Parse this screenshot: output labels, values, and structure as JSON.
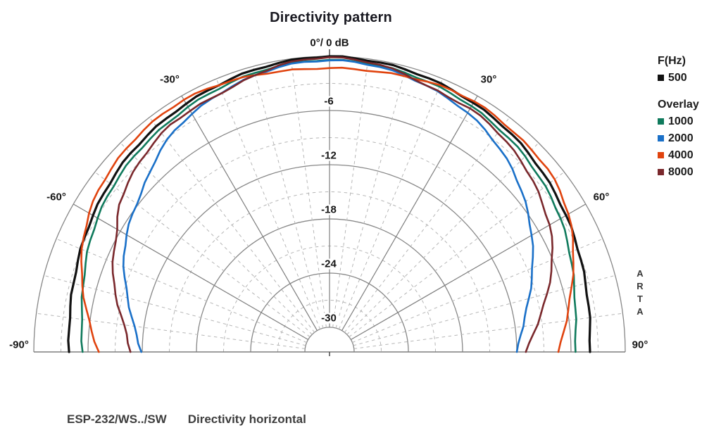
{
  "title": "Directivity pattern",
  "legend": {
    "primary_header": "F(Hz)",
    "primary": [
      {
        "label": "500",
        "color": "#111111"
      }
    ],
    "overlay_header": "Overlay",
    "overlay": [
      {
        "label": "1000",
        "color": "#0f7a5c"
      },
      {
        "label": "2000",
        "color": "#1a70c8"
      },
      {
        "label": "4000",
        "color": "#e0430e"
      },
      {
        "label": "8000",
        "color": "#7a282c"
      }
    ]
  },
  "watermark": {
    "letters": [
      "A",
      "R",
      "T",
      "A"
    ]
  },
  "footer": {
    "model": "ESP-232/WS../SW",
    "caption": "Directivity horizontal"
  },
  "chart_data": {
    "type": "line",
    "subtype": "polar-directivity-halfplane",
    "title": "Directivity pattern",
    "apex_label": "0°/ 0 dB",
    "units": {
      "angle": "deg",
      "radius": "dB"
    },
    "radial_range": [
      0,
      -30
    ],
    "radial_ticks_db": [
      -6,
      -12,
      -18,
      -24,
      -30
    ],
    "angle_ticks_deg": [
      -90,
      -60,
      -30,
      0,
      30,
      60,
      90
    ],
    "angle_tick_labels": [
      "-90°",
      "-60°",
      "-30°",
      "0°/ 0 dB",
      "30°",
      "60°",
      "90°"
    ],
    "grid": {
      "ring_solid_step_db": 6,
      "ring_dashed_step_db": 3,
      "ray_solid_step_deg": 30,
      "ray_dashed_step_deg": 7.5,
      "grid_on": true
    },
    "legend_position": "right",
    "angles_deg": [
      -90,
      -85,
      -80,
      -75,
      -70,
      -65,
      -60,
      -55,
      -50,
      -45,
      -40,
      -35,
      -30,
      -25,
      -20,
      -15,
      -10,
      -5,
      0,
      5,
      10,
      15,
      20,
      25,
      30,
      35,
      40,
      45,
      50,
      55,
      60,
      65,
      70,
      75,
      80,
      85,
      90
    ],
    "series": [
      {
        "name": "500",
        "color": "#111111",
        "width": 3.2,
        "values_db": [
          -3.9,
          -3.8,
          -3.6,
          -3.4,
          -3.1,
          -2.8,
          -2.5,
          -2.2,
          -1.9,
          -1.6,
          -1.4,
          -1.2,
          -1.0,
          -0.8,
          -0.6,
          -0.4,
          -0.25,
          -0.1,
          0.0,
          -0.1,
          -0.2,
          -0.35,
          -0.5,
          -0.7,
          -0.9,
          -1.1,
          -1.3,
          -1.6,
          -1.9,
          -2.2,
          -2.5,
          -2.8,
          -3.1,
          -3.4,
          -3.6,
          -3.8,
          -3.9
        ]
      },
      {
        "name": "1000",
        "color": "#0f7a5c",
        "width": 2.6,
        "values_db": [
          -5.4,
          -5.2,
          -4.9,
          -4.5,
          -4.0,
          -3.5,
          -3.1,
          -2.7,
          -2.4,
          -2.1,
          -1.9,
          -1.7,
          -1.4,
          -1.2,
          -0.95,
          -0.75,
          -0.55,
          -0.45,
          -0.4,
          -0.45,
          -0.55,
          -0.7,
          -0.9,
          -1.1,
          -1.3,
          -1.6,
          -1.85,
          -2.1,
          -2.5,
          -2.8,
          -3.2,
          -3.7,
          -4.2,
          -4.7,
          -5.1,
          -5.4,
          -5.5
        ]
      },
      {
        "name": "2000",
        "color": "#1a70c8",
        "width": 2.6,
        "values_db": [
          -11.9,
          -11.3,
          -10.5,
          -9.6,
          -8.6,
          -7.6,
          -6.8,
          -6.1,
          -5.5,
          -4.6,
          -3.6,
          -2.8,
          -2.3,
          -1.8,
          -1.4,
          -1.0,
          -0.7,
          -0.5,
          -0.45,
          -0.5,
          -0.7,
          -1.0,
          -1.35,
          -1.75,
          -2.15,
          -2.7,
          -3.4,
          -4.1,
          -5.0,
          -5.9,
          -6.9,
          -7.9,
          -8.9,
          -9.9,
          -10.8,
          -11.5,
          -12.0
        ]
      },
      {
        "name": "4000",
        "color": "#e0430e",
        "width": 2.6,
        "values_db": [
          -7.2,
          -6.3,
          -5.4,
          -4.4,
          -3.5,
          -2.7,
          -2.0,
          -1.5,
          -1.2,
          -0.9,
          -0.7,
          -0.55,
          -0.5,
          -0.6,
          -0.8,
          -1.0,
          -1.2,
          -1.3,
          -1.3,
          -1.3,
          -1.25,
          -1.1,
          -0.9,
          -0.75,
          -0.7,
          -0.8,
          -1.0,
          -1.1,
          -1.2,
          -1.6,
          -2.2,
          -3.0,
          -4.0,
          -5.0,
          -5.9,
          -6.7,
          -7.4
        ]
      },
      {
        "name": "8000",
        "color": "#7a282c",
        "width": 2.6,
        "values_db": [
          -10.7,
          -10.2,
          -9.3,
          -8.2,
          -7.2,
          -6.4,
          -5.6,
          -4.3,
          -3.6,
          -3.0,
          -2.5,
          -2.0,
          -1.9,
          -1.75,
          -1.5,
          -1.0,
          -0.5,
          -0.25,
          -0.1,
          -0.25,
          -0.45,
          -0.85,
          -1.35,
          -1.6,
          -1.6,
          -1.9,
          -2.3,
          -2.8,
          -3.3,
          -4.0,
          -4.6,
          -5.5,
          -6.6,
          -7.8,
          -9.0,
          -10.1,
          -11.0
        ]
      }
    ]
  }
}
